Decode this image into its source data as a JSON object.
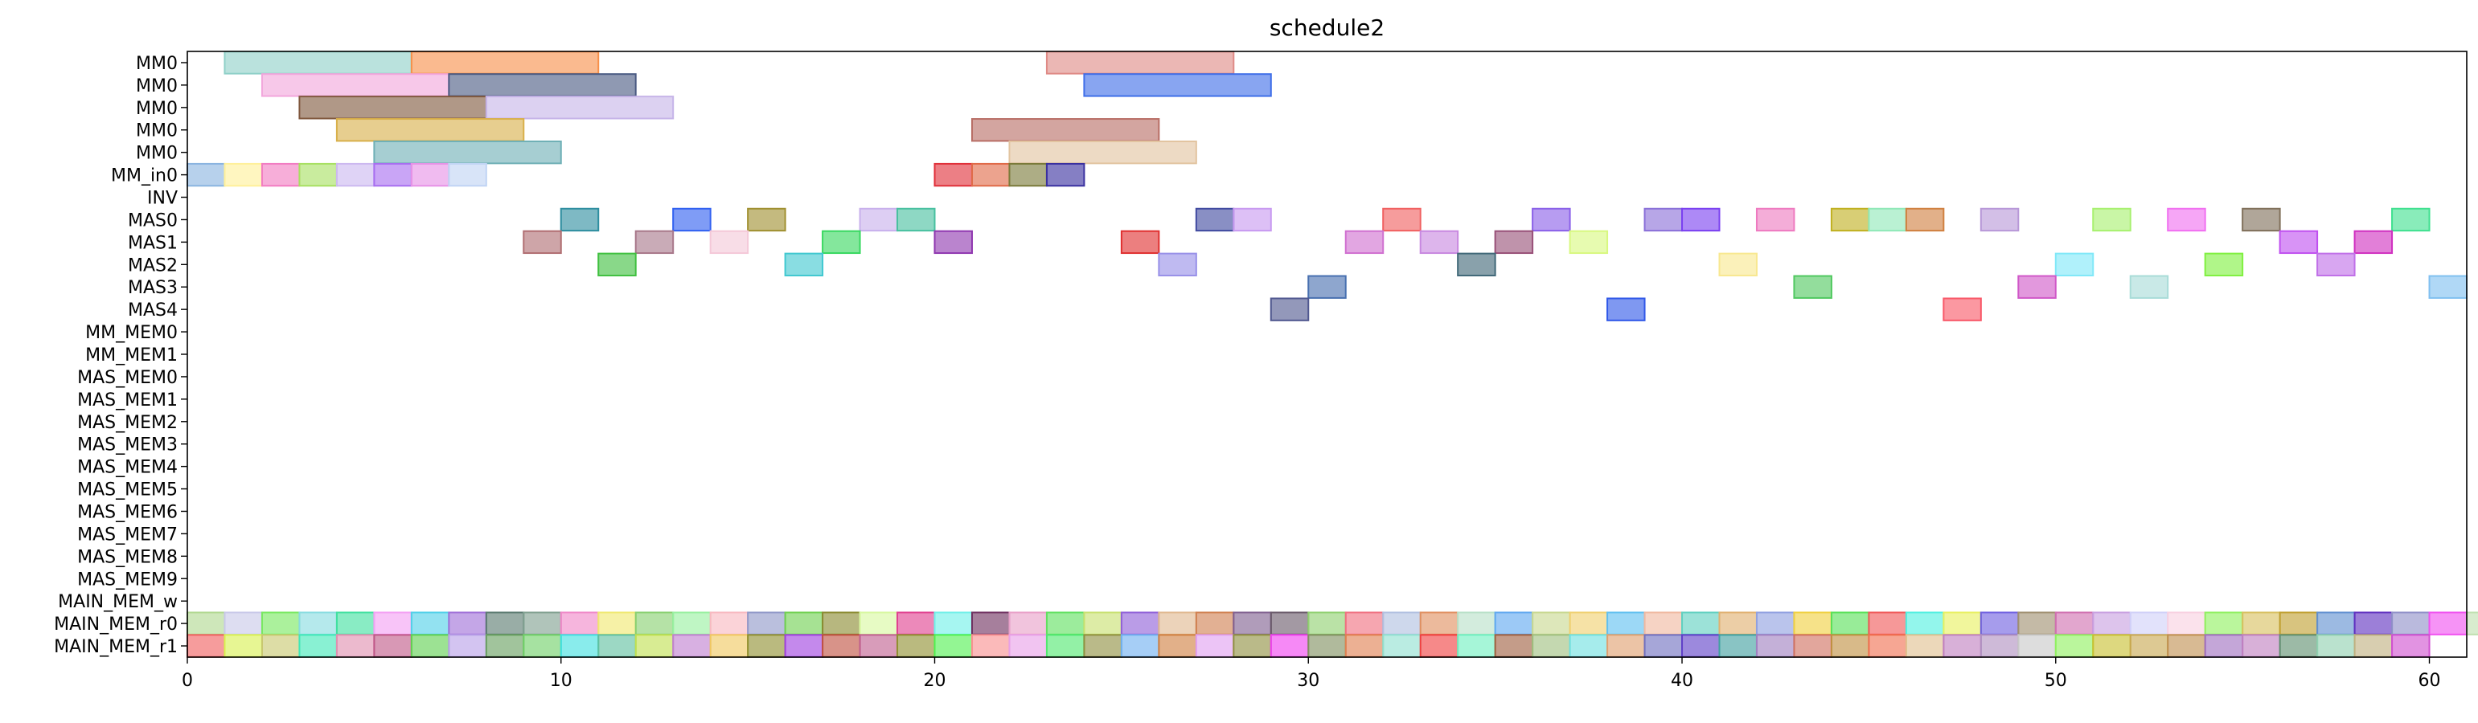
{
  "chart_data": {
    "type": "gantt",
    "title": "schedule2",
    "xlim": [
      0,
      61
    ],
    "xticks": [
      0,
      10,
      20,
      30,
      40,
      50,
      60
    ],
    "rows": [
      "MM0",
      "MM0",
      "MM0",
      "MM0",
      "MM0",
      "MM_in0",
      "INV",
      "MAS0",
      "MAS1",
      "MAS2",
      "MAS3",
      "MAS4",
      "MM_MEM0",
      "MM_MEM1",
      "MAS_MEM0",
      "MAS_MEM1",
      "MAS_MEM2",
      "MAS_MEM3",
      "MAS_MEM4",
      "MAS_MEM5",
      "MAS_MEM6",
      "MAS_MEM7",
      "MAS_MEM8",
      "MAS_MEM9",
      "MAIN_MEM_w",
      "MAIN_MEM_r0",
      "MAIN_MEM_r1"
    ],
    "tasks": [
      {
        "row": 0,
        "start": 1,
        "end": 6,
        "color": "#8fd0c8"
      },
      {
        "row": 0,
        "start": 6,
        "end": 11,
        "color": "#f7904a"
      },
      {
        "row": 0,
        "start": 23,
        "end": 28,
        "color": "#df8a86"
      },
      {
        "row": 1,
        "start": 2,
        "end": 7,
        "color": "#f2a6dc"
      },
      {
        "row": 1,
        "start": 7,
        "end": 12,
        "color": "#4a5a82"
      },
      {
        "row": 1,
        "start": 24,
        "end": 29,
        "color": "#3f6ee8"
      },
      {
        "row": 2,
        "start": 3,
        "end": 8,
        "color": "#80583e"
      },
      {
        "row": 2,
        "start": 8,
        "end": 13,
        "color": "#c6b4e8"
      },
      {
        "row": 3,
        "start": 4,
        "end": 9,
        "color": "#d8b04a"
      },
      {
        "row": 3,
        "start": 21,
        "end": 26,
        "color": "#b86e66"
      },
      {
        "row": 4,
        "start": 5,
        "end": 10,
        "color": "#6fb0b6"
      },
      {
        "row": 4,
        "start": 22,
        "end": 27,
        "color": "#e2c4a0"
      },
      {
        "row": 5,
        "start": 0,
        "end": 1,
        "color": "#8ab4e0"
      },
      {
        "row": 5,
        "start": 1,
        "end": 2,
        "color": "#fff09a"
      },
      {
        "row": 5,
        "start": 2,
        "end": 3,
        "color": "#f27cc2"
      },
      {
        "row": 5,
        "start": 3,
        "end": 4,
        "color": "#a8e062"
      },
      {
        "row": 5,
        "start": 4,
        "end": 5,
        "color": "#ccb8f0"
      },
      {
        "row": 5,
        "start": 5,
        "end": 6,
        "color": "#a86ef0"
      },
      {
        "row": 5,
        "start": 6,
        "end": 7,
        "color": "#e692e6"
      },
      {
        "row": 5,
        "start": 7,
        "end": 8,
        "color": "#c0d4f4"
      },
      {
        "row": 5,
        "start": 20,
        "end": 21,
        "color": "#e0303a"
      },
      {
        "row": 5,
        "start": 21,
        "end": 22,
        "color": "#e06a48"
      },
      {
        "row": 5,
        "start": 22,
        "end": 23,
        "color": "#7a7a3a"
      },
      {
        "row": 5,
        "start": 23,
        "end": 24,
        "color": "#3a30a0"
      },
      {
        "row": 7,
        "start": 10,
        "end": 11,
        "color": "#2e8ea0"
      },
      {
        "row": 7,
        "start": 13,
        "end": 14,
        "color": "#3060f0"
      },
      {
        "row": 7,
        "start": 15,
        "end": 16,
        "color": "#a09030"
      },
      {
        "row": 7,
        "start": 18,
        "end": 19,
        "color": "#c8b0ec"
      },
      {
        "row": 7,
        "start": 19,
        "end": 20,
        "color": "#48c0a0"
      },
      {
        "row": 7,
        "start": 27,
        "end": 28,
        "color": "#404aa0"
      },
      {
        "row": 7,
        "start": 28,
        "end": 29,
        "color": "#c89af0"
      },
      {
        "row": 7,
        "start": 32,
        "end": 33,
        "color": "#f06060"
      },
      {
        "row": 7,
        "start": 36,
        "end": 37,
        "color": "#8a60e8"
      },
      {
        "row": 7,
        "start": 39,
        "end": 40,
        "color": "#8a70d8"
      },
      {
        "row": 7,
        "start": 40,
        "end": 41,
        "color": "#7a40f0"
      },
      {
        "row": 7,
        "start": 42,
        "end": 43,
        "color": "#ee7ac0"
      },
      {
        "row": 7,
        "start": 44,
        "end": 45,
        "color": "#c0b020"
      },
      {
        "row": 7,
        "start": 45,
        "end": 46,
        "color": "#90e8b8"
      },
      {
        "row": 7,
        "start": 46,
        "end": 47,
        "color": "#d08040"
      },
      {
        "row": 7,
        "start": 48,
        "end": 49,
        "color": "#b898d8"
      },
      {
        "row": 7,
        "start": 51,
        "end": 52,
        "color": "#a8f070"
      },
      {
        "row": 7,
        "start": 53,
        "end": 54,
        "color": "#f070f0"
      },
      {
        "row": 7,
        "start": 55,
        "end": 56,
        "color": "#80705a"
      },
      {
        "row": 7,
        "start": 59,
        "end": 60,
        "color": "#40e090"
      },
      {
        "row": 8,
        "start": 9,
        "end": 10,
        "color": "#b06e72"
      },
      {
        "row": 8,
        "start": 12,
        "end": 13,
        "color": "#a8788a"
      },
      {
        "row": 8,
        "start": 14,
        "end": 15,
        "color": "#f4c8d8"
      },
      {
        "row": 8,
        "start": 17,
        "end": 18,
        "color": "#38d860"
      },
      {
        "row": 8,
        "start": 20,
        "end": 21,
        "color": "#9038b0"
      },
      {
        "row": 8,
        "start": 25,
        "end": 26,
        "color": "#e03030"
      },
      {
        "row": 8,
        "start": 31,
        "end": 32,
        "color": "#d070d0"
      },
      {
        "row": 8,
        "start": 33,
        "end": 34,
        "color": "#c888e0"
      },
      {
        "row": 8,
        "start": 35,
        "end": 36,
        "color": "#985078"
      },
      {
        "row": 8,
        "start": 37,
        "end": 38,
        "color": "#d8f880"
      },
      {
        "row": 8,
        "start": 56,
        "end": 57,
        "color": "#c050f0"
      },
      {
        "row": 8,
        "start": 58,
        "end": 59,
        "color": "#d030c0"
      },
      {
        "row": 9,
        "start": 11,
        "end": 12,
        "color": "#40c040"
      },
      {
        "row": 9,
        "start": 16,
        "end": 17,
        "color": "#40c8d0"
      },
      {
        "row": 9,
        "start": 26,
        "end": 27,
        "color": "#9890e8"
      },
      {
        "row": 9,
        "start": 34,
        "end": 35,
        "color": "#406878"
      },
      {
        "row": 9,
        "start": 41,
        "end": 42,
        "color": "#f8e890"
      },
      {
        "row": 9,
        "start": 50,
        "end": 51,
        "color": "#80e8f8"
      },
      {
        "row": 9,
        "start": 54,
        "end": 55,
        "color": "#80f040"
      },
      {
        "row": 9,
        "start": 57,
        "end": 58,
        "color": "#c070e8"
      },
      {
        "row": 10,
        "start": 30,
        "end": 31,
        "color": "#4870b0"
      },
      {
        "row": 10,
        "start": 43,
        "end": 44,
        "color": "#50c860"
      },
      {
        "row": 10,
        "start": 49,
        "end": 50,
        "color": "#d058c8"
      },
      {
        "row": 10,
        "start": 52,
        "end": 53,
        "color": "#a8dcd8"
      },
      {
        "row": 10,
        "start": 60,
        "end": 61,
        "color": "#80c0f0"
      },
      {
        "row": 11,
        "start": 29,
        "end": 30,
        "color": "#505890"
      },
      {
        "row": 11,
        "start": 38,
        "end": 39,
        "color": "#3058e8"
      },
      {
        "row": 11,
        "start": 47,
        "end": 48,
        "color": "#f85868"
      }
    ],
    "mem_rows": [
      {
        "row": 25,
        "colors": [
          "#b0d890",
          "#c8c8e8",
          "#78e860",
          "#88dce0",
          "#40e0a0",
          "#f4a0f4",
          "#50d0e8",
          "#a070d8",
          "#5a7a70",
          "#80a090",
          "#f088c8",
          "#f0e870",
          "#88d070",
          "#98f0a0",
          "#f8b8c0",
          "#9098c8",
          "#70d050",
          "#8a8a30",
          "#d8f8a0",
          "#e04090",
          "#70f0e8",
          "#703060",
          "#e8a0c8",
          "#60e060",
          "#c8e070",
          "#9060d8",
          "#e0b890",
          "#d08050",
          "#806090",
          "#6a5a6a",
          "#90d070",
          "#f07080",
          "#b0c0e0",
          "#e09060",
          "#b8e0c8",
          "#60a8f0",
          "#c8d890",
          "#f0d070",
          "#60c0f0",
          "#f0b8a0",
          "#60d0c0",
          "#e0b070",
          "#90a0e0",
          "#f0d040",
          "#58e058",
          "#f05858",
          "#50f0e0",
          "#e8f060",
          "#7060e0",
          "#a09070",
          "#d070b0",
          "#c8a0e0",
          "#d0d0f8",
          "#f8d0e0",
          "#90f060",
          "#d8c060",
          "#c0a030",
          "#6090d0",
          "#6030c0",
          "#9090c8",
          "#f050f0",
          "#c0e0b0",
          "#f8e070",
          "#e0a8f0"
        ]
      },
      {
        "row": 26,
        "colors": [
          "#f06060",
          "#d8f050",
          "#c8c870",
          "#40e8b8",
          "#e090b0",
          "#c05888",
          "#60d050",
          "#b8a0e8",
          "#68a060",
          "#70d068",
          "#40e0e0",
          "#60c0a0",
          "#c0e050",
          "#c080d0",
          "#f0c860",
          "#909030",
          "#a040e0",
          "#c05040",
          "#c06090",
          "#909030",
          "#50f050",
          "#f89090",
          "#e8a0e8",
          "#50e870",
          "#909040",
          "#70b0f0",
          "#d08040",
          "#e0a0f0",
          "#909040",
          "#f040f0",
          "#809060",
          "#e08050",
          "#90e0d0",
          "#f04040",
          "#70f0c0",
          "#a06040",
          "#a0c080",
          "#70e0e0",
          "#e0a070",
          "#7070c0",
          "#6040c8",
          "#40a0a0",
          "#a080c0",
          "#d07060",
          "#c09040",
          "#f07050",
          "#e0c090",
          "#c080c0",
          "#b090c0",
          "#c8c8c8",
          "#90f060",
          "#c8c030",
          "#c8a850",
          "#c09050",
          "#a070c0",
          "#c080c0",
          "#609070",
          "#90d0b0",
          "#c0b080",
          "#d050d0"
        ]
      }
    ]
  }
}
